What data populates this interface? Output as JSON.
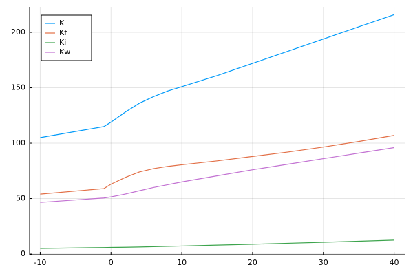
{
  "chart_data": {
    "type": "line",
    "x": [
      -10,
      -1,
      0,
      2,
      4,
      6,
      8,
      10,
      15,
      20,
      25,
      30,
      35,
      40
    ],
    "series": [
      {
        "name": "K",
        "color": "#009af9",
        "values": [
          105,
          115,
          119,
          128,
          136,
          142,
          147,
          151,
          161,
          172,
          183,
          194,
          205,
          216
        ]
      },
      {
        "name": "Kf",
        "color": "#e26f46",
        "values": [
          54,
          59,
          63,
          69,
          74,
          77,
          79,
          80.5,
          84,
          88,
          92,
          96.5,
          101.5,
          107
        ]
      },
      {
        "name": "Ki",
        "color": "#3da44d",
        "values": [
          5,
          5.8,
          5.9,
          6.1,
          6.3,
          6.6,
          6.9,
          7.2,
          8,
          8.8,
          9.7,
          10.6,
          11.5,
          12.5
        ]
      },
      {
        "name": "Kw",
        "color": "#c271d2",
        "values": [
          46.5,
          50.5,
          51.5,
          54,
          57,
          60,
          62.5,
          65,
          70.5,
          76,
          81,
          86,
          91,
          96
        ]
      }
    ],
    "xlim": [
      -11.5,
      41.5
    ],
    "xticks": [
      -10,
      0,
      10,
      20,
      30,
      40
    ],
    "ylim": [
      -0.6,
      223
    ],
    "yticks": [
      0,
      50,
      100,
      150,
      200
    ],
    "grid": true,
    "legend": "top-left"
  }
}
